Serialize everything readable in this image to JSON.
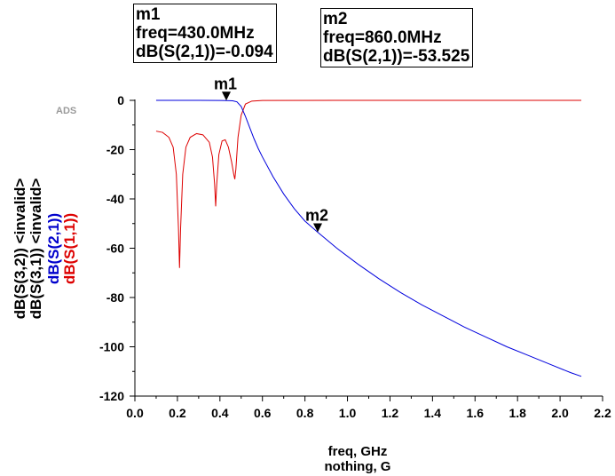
{
  "chart_data": {
    "type": "line",
    "xlabel": "freq, GHz",
    "xlabel2": "nothing, G",
    "ylabels": [
      {
        "text": "dB(S(3,2)) <invalid>",
        "color": "#000000"
      },
      {
        "text": "dB(S(3,1)) <invalid>",
        "color": "#000000"
      },
      {
        "text": "dB(S(2,1))",
        "color": "#0000cc"
      },
      {
        "text": "dB(S(1,1))",
        "color": "#dd0000"
      }
    ],
    "watermark": "ADS",
    "xlim": [
      0.0,
      2.2
    ],
    "ylim": [
      -120,
      0
    ],
    "xticks": [
      "0.0",
      "0.2",
      "0.4",
      "0.6",
      "0.8",
      "1.0",
      "1.2",
      "1.4",
      "1.6",
      "1.8",
      "2.0",
      "2.2"
    ],
    "yticks": [
      "0",
      "-20",
      "-40",
      "-60",
      "-80",
      "-100",
      "-120"
    ],
    "series": [
      {
        "name": "dB(S(2,1))",
        "color": "#0000dd",
        "x": [
          0.1,
          0.2,
          0.3,
          0.4,
          0.43,
          0.46,
          0.48,
          0.5,
          0.52,
          0.54,
          0.56,
          0.58,
          0.6,
          0.65,
          0.7,
          0.75,
          0.8,
          0.86,
          0.95,
          1.05,
          1.15,
          1.25,
          1.35,
          1.45,
          1.55,
          1.65,
          1.75,
          1.85,
          1.95,
          2.05,
          2.1
        ],
        "y": [
          0.0,
          0.0,
          0.0,
          -0.05,
          -0.094,
          -0.2,
          -0.6,
          -2.5,
          -6.5,
          -11,
          -15.5,
          -19.5,
          -23,
          -31,
          -38,
          -44,
          -49,
          -53.525,
          -60,
          -66.5,
          -72.5,
          -78,
          -83,
          -87.5,
          -92,
          -96,
          -100,
          -103.5,
          -107,
          -110.5,
          -112
        ]
      },
      {
        "name": "dB(S(1,1))",
        "color": "#dd0000",
        "x": [
          0.1,
          0.13,
          0.16,
          0.18,
          0.195,
          0.205,
          0.21,
          0.215,
          0.225,
          0.24,
          0.26,
          0.29,
          0.32,
          0.35,
          0.365,
          0.375,
          0.38,
          0.385,
          0.395,
          0.41,
          0.425,
          0.44,
          0.455,
          0.465,
          0.47,
          0.475,
          0.485,
          0.5,
          0.52,
          0.55,
          0.6,
          1.0,
          1.5,
          2.1
        ],
        "y": [
          -12.5,
          -13,
          -15,
          -19,
          -30,
          -52,
          -68,
          -52,
          -30,
          -19,
          -15,
          -13.5,
          -14,
          -17,
          -23,
          -34,
          -43,
          -34,
          -22,
          -16.5,
          -16,
          -19,
          -25,
          -30,
          -32,
          -28,
          -15,
          -6,
          -1.5,
          -0.3,
          -0.05,
          0,
          0,
          0
        ]
      }
    ],
    "markers": [
      {
        "name": "m1",
        "freq": 0.43,
        "value": -0.094,
        "lines": [
          "m1",
          "freq=430.0MHz",
          "dB(S(2,1))=-0.094"
        ]
      },
      {
        "name": "m2",
        "freq": 0.86,
        "value": -53.525,
        "lines": [
          "m2",
          "freq=860.0MHz",
          "dB(S(2,1))=-53.525"
        ]
      }
    ]
  }
}
